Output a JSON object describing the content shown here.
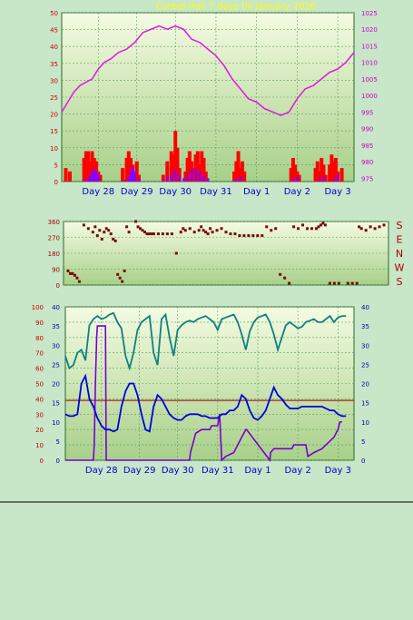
{
  "page": {
    "background": "#c8e6c8",
    "title": "Corbel Hall 7 days till January 2026"
  },
  "colors": {
    "panel_top": "#f4fbe2",
    "panel_bottom": "#a8d08a",
    "grid": "#5aa05a",
    "pressure": "#e020e0",
    "rain_rate": "#ff0000",
    "rain_total": "#8a00ff",
    "wind_dir": "#7a0a0a",
    "humidity": "#108080",
    "temperature": "#0000dd",
    "dewpoint_ref": "#aa2020",
    "solar": "#7a00cc",
    "axis_left": "#cc0000",
    "axis_right": "#cc00cc",
    "axis_left_3": "#cc0000",
    "axis_left_3b": "#0000aa",
    "axis_right_3": "#0000aa",
    "day_label": "#0000cc",
    "title": "#ffff00"
  },
  "chart_data": [
    {
      "type": "line",
      "name": "pressure-rain",
      "x_ticks": [
        "Day 28",
        "Day 29",
        "Day 30",
        "Day 31",
        "Day 1",
        "Day 2",
        "Day 3"
      ],
      "x_range": [
        0,
        7.2
      ],
      "x_tick_positions": [
        0.9,
        1.85,
        2.8,
        3.8,
        4.8,
        5.8,
        6.8
      ],
      "y_left": {
        "ticks": [
          0,
          5,
          10,
          15,
          20,
          25,
          30,
          35,
          40,
          45,
          50
        ],
        "range": [
          0,
          50
        ]
      },
      "y_right": {
        "ticks": [
          975,
          980,
          985,
          990,
          995,
          1000,
          1005,
          1010,
          1015,
          1020,
          1025
        ],
        "range": [
          974,
          1025
        ]
      },
      "series": [
        {
          "key": "pressure",
          "axis": "right",
          "x": [
            0,
            0.15,
            0.3,
            0.45,
            0.6,
            0.75,
            0.9,
            1.05,
            1.2,
            1.4,
            1.6,
            1.8,
            2.0,
            2.2,
            2.4,
            2.6,
            2.8,
            3.0,
            3.2,
            3.4,
            3.6,
            3.8,
            4.0,
            4.2,
            4.4,
            4.6,
            4.8,
            5.0,
            5.2,
            5.4,
            5.6,
            5.8,
            6.0,
            6.2,
            6.4,
            6.6,
            6.8,
            7.0,
            7.2
          ],
          "values": [
            995,
            998,
            1001,
            1003,
            1004,
            1005,
            1008,
            1010,
            1011,
            1013,
            1014,
            1016,
            1019,
            1020,
            1021,
            1020,
            1021,
            1020,
            1017,
            1016,
            1014,
            1012,
            1009,
            1005,
            1002,
            999,
            998,
            996,
            995,
            994,
            995,
            999,
            1002,
            1003,
            1005,
            1007,
            1008,
            1010,
            1013
          ]
        },
        {
          "key": "rain_rate",
          "axis": "left",
          "x": [
            0.1,
            0.2,
            0.55,
            0.6,
            0.65,
            0.7,
            0.75,
            0.8,
            0.85,
            0.9,
            0.95,
            1.5,
            1.6,
            1.65,
            1.7,
            1.75,
            1.8,
            1.85,
            1.9,
            2.5,
            2.6,
            2.7,
            2.75,
            2.8,
            2.85,
            2.9,
            3.05,
            3.1,
            3.15,
            3.2,
            3.25,
            3.3,
            3.35,
            3.4,
            3.45,
            3.5,
            3.55,
            4.25,
            4.3,
            4.35,
            4.4,
            4.45,
            4.5,
            5.65,
            5.7,
            5.75,
            5.8,
            5.85,
            6.25,
            6.3,
            6.35,
            6.4,
            6.45,
            6.5,
            6.6,
            6.65,
            6.7,
            6.75,
            6.8,
            6.9
          ],
          "values": [
            4,
            3,
            7,
            9,
            9,
            6,
            9,
            7,
            6,
            3,
            2,
            4,
            7,
            9,
            7,
            5,
            3,
            6,
            2,
            2,
            6,
            9,
            8,
            15,
            10,
            4,
            3,
            7,
            9,
            6,
            4,
            8,
            9,
            5,
            9,
            7,
            3,
            3,
            6,
            9,
            4,
            6,
            3,
            4,
            7,
            5,
            3,
            2,
            4,
            6,
            3,
            7,
            5,
            2,
            5,
            8,
            6,
            7,
            3,
            4
          ]
        },
        {
          "key": "rain_total",
          "axis": "left",
          "x": [
            0.55,
            0.65,
            0.7,
            0.75,
            0.8,
            0.85,
            0.9,
            1.55,
            1.65,
            1.7,
            1.75,
            1.8,
            1.9,
            2.5,
            2.6,
            2.7,
            2.8,
            2.9,
            3.0,
            3.1,
            3.2,
            3.3,
            3.4,
            3.5,
            3.6,
            4.3,
            4.4,
            5.7,
            5.8,
            6.35,
            6.45,
            6.7,
            6.8
          ],
          "values": [
            0.5,
            1,
            2,
            3,
            4,
            3,
            2,
            0.5,
            1.5,
            3.5,
            4.5,
            3,
            1,
            0.5,
            1.5,
            2.5,
            3.5,
            2,
            1,
            2,
            3.5,
            4,
            3,
            2,
            1,
            1,
            1.5,
            1,
            1.5,
            1,
            1.5,
            1,
            2
          ]
        }
      ]
    },
    {
      "type": "scatter",
      "name": "wind-direction",
      "x_ticks": [],
      "x_range": [
        0,
        7.2
      ],
      "y_left": {
        "ticks": [
          0,
          90,
          180,
          270,
          360
        ],
        "range": [
          0,
          360
        ]
      },
      "y_right_labels": [
        "S",
        "E",
        "N",
        "W",
        "S"
      ],
      "series": [
        {
          "key": "wind_dir",
          "x": [
            0.1,
            0.15,
            0.2,
            0.25,
            0.3,
            0.35,
            0.45,
            0.55,
            0.65,
            0.7,
            0.75,
            0.8,
            0.85,
            0.9,
            0.95,
            1.0,
            1.05,
            1.1,
            1.15,
            1.2,
            1.25,
            1.3,
            1.35,
            1.4,
            1.45,
            1.6,
            1.65,
            1.7,
            1.75,
            1.8,
            1.85,
            1.9,
            1.95,
            2.0,
            2.1,
            2.2,
            2.3,
            2.4,
            2.5,
            2.6,
            2.65,
            2.7,
            2.8,
            2.9,
            3.0,
            3.05,
            3.1,
            3.15,
            3.2,
            3.25,
            3.3,
            3.4,
            3.5,
            3.6,
            3.7,
            3.8,
            3.9,
            4.0,
            4.1,
            4.2,
            4.3,
            4.4,
            4.5,
            4.6,
            4.7,
            4.8,
            4.9,
            5.0,
            5.1,
            5.2,
            5.3,
            5.4,
            5.5,
            5.6,
            5.65,
            5.7,
            5.75,
            5.8,
            5.9,
            6.0,
            6.1,
            6.3,
            6.4,
            6.5,
            6.55,
            6.6,
            6.7,
            6.8,
            6.9,
            7.0,
            7.1
          ],
          "values": [
            80,
            65,
            65,
            55,
            40,
            20,
            340,
            320,
            300,
            330,
            280,
            310,
            260,
            300,
            320,
            310,
            290,
            260,
            250,
            60,
            40,
            20,
            80,
            330,
            300,
            360,
            330,
            320,
            310,
            300,
            290,
            290,
            290,
            290,
            290,
            290,
            290,
            290,
            180,
            300,
            320,
            310,
            320,
            300,
            310,
            330,
            310,
            300,
            290,
            320,
            300,
            310,
            320,
            300,
            290,
            290,
            280,
            280,
            280,
            280,
            280,
            280,
            330,
            310,
            320,
            60,
            40,
            10,
            330,
            320,
            340,
            320,
            320,
            320,
            330,
            340,
            350,
            340,
            10,
            10,
            10,
            10,
            10,
            10,
            330,
            320,
            310,
            330,
            320,
            330,
            340
          ]
        }
      ]
    },
    {
      "type": "line",
      "name": "temperature-humidity-solar",
      "x_ticks": [
        "Day 28",
        "Day 29",
        "Day 30",
        "Day 31",
        "Day 1",
        "Day 2",
        "Day 3"
      ],
      "x_range": [
        0,
        7.2
      ],
      "x_tick_positions": [
        0.9,
        1.85,
        2.8,
        3.8,
        4.8,
        5.8,
        6.8
      ],
      "y_left_outer": {
        "ticks": [
          0,
          10,
          20,
          30,
          40,
          50,
          60,
          70,
          80,
          90,
          100
        ],
        "range": [
          0,
          100
        ]
      },
      "y_left_inner": {
        "ticks": [
          0,
          5,
          10,
          15,
          20,
          25,
          30,
          35,
          40
        ],
        "range": [
          0,
          40
        ]
      },
      "y_right": {
        "ticks": [
          0,
          5,
          10,
          15,
          20,
          25,
          30,
          35,
          40
        ],
        "range": [
          0,
          40
        ]
      },
      "series": [
        {
          "key": "humidity",
          "axis": "outer",
          "x": [
            0,
            0.1,
            0.2,
            0.3,
            0.4,
            0.5,
            0.6,
            0.7,
            0.8,
            0.9,
            1.0,
            1.1,
            1.2,
            1.3,
            1.4,
            1.5,
            1.6,
            1.7,
            1.8,
            1.9,
            2.0,
            2.1,
            2.2,
            2.3,
            2.4,
            2.5,
            2.6,
            2.7,
            2.8,
            2.9,
            3.0,
            3.1,
            3.2,
            3.3,
            3.4,
            3.5,
            3.6,
            3.7,
            3.8,
            3.9,
            4.0,
            4.1,
            4.2,
            4.3,
            4.4,
            4.5,
            4.6,
            4.7,
            4.8,
            4.9,
            5.0,
            5.1,
            5.2,
            5.3,
            5.4,
            5.5,
            5.6,
            5.7,
            5.8,
            5.9,
            6.0,
            6.1,
            6.2,
            6.3,
            6.4,
            6.5,
            6.6,
            6.7,
            6.8,
            6.9,
            7.0
          ],
          "values": [
            68,
            60,
            62,
            70,
            72,
            65,
            88,
            92,
            94,
            92,
            93,
            95,
            96,
            90,
            86,
            68,
            60,
            70,
            85,
            90,
            92,
            94,
            70,
            62,
            92,
            95,
            80,
            68,
            85,
            88,
            90,
            91,
            90,
            92,
            93,
            94,
            92,
            90,
            85,
            92,
            93,
            94,
            95,
            90,
            82,
            72,
            84,
            90,
            93,
            94,
            95,
            90,
            82,
            72,
            80,
            88,
            90,
            88,
            86,
            87,
            90,
            91,
            92,
            90,
            90,
            92,
            94,
            90,
            93,
            94,
            94
          ]
        },
        {
          "key": "temperature",
          "axis": "inner",
          "x": [
            0,
            0.1,
            0.2,
            0.3,
            0.4,
            0.5,
            0.6,
            0.7,
            0.8,
            0.9,
            1.0,
            1.1,
            1.2,
            1.3,
            1.4,
            1.5,
            1.6,
            1.7,
            1.8,
            1.9,
            2.0,
            2.1,
            2.2,
            2.3,
            2.4,
            2.5,
            2.6,
            2.7,
            2.8,
            2.9,
            3.0,
            3.1,
            3.2,
            3.3,
            3.4,
            3.5,
            3.6,
            3.7,
            3.8,
            3.9,
            4.0,
            4.1,
            4.2,
            4.3,
            4.4,
            4.5,
            4.6,
            4.7,
            4.8,
            4.9,
            5.0,
            5.1,
            5.2,
            5.3,
            5.4,
            5.5,
            5.6,
            5.7,
            5.8,
            5.9,
            6.0,
            6.1,
            6.2,
            6.3,
            6.4,
            6.5,
            6.6,
            6.7,
            6.8,
            6.9,
            7.0
          ],
          "values": [
            12,
            11.5,
            11.5,
            12,
            20,
            22,
            16,
            14,
            11,
            9,
            8,
            8,
            7.5,
            8,
            14,
            18,
            20,
            20,
            17,
            12,
            8,
            7.5,
            14,
            17,
            16,
            14,
            12,
            11,
            10.5,
            10.5,
            11.5,
            12,
            12,
            12,
            11.5,
            11.5,
            11,
            11,
            11,
            12,
            12,
            13,
            13,
            14,
            17,
            16,
            13,
            11,
            10.5,
            11.5,
            13,
            16,
            19,
            17,
            16,
            14.5,
            13.5,
            13.5,
            13.5,
            14,
            14,
            14,
            14,
            14,
            14,
            13.5,
            13,
            13,
            12,
            11.5,
            11.5
          ]
        },
        {
          "key": "dewpoint_ref",
          "axis": "outer",
          "x": [
            0,
            7.2
          ],
          "values": [
            39,
            39
          ]
        },
        {
          "key": "solar",
          "axis": "right",
          "x": [
            0,
            0.5,
            0.55,
            0.7,
            0.72,
            0.75,
            0.78,
            0.8,
            0.85,
            0.9,
            0.95,
            1.0,
            1.02,
            3.1,
            3.12,
            3.2,
            3.25,
            3.4,
            3.6,
            3.65,
            3.8,
            3.85,
            3.9,
            4.0,
            4.2,
            4.3,
            4.4,
            4.5,
            4.52,
            5.1,
            5.12,
            5.2,
            5.3,
            5.4,
            5.5,
            5.6,
            5.65,
            5.7,
            6.0,
            6.05,
            6.2,
            6.4,
            6.5,
            6.6,
            6.7,
            6.8,
            6.85,
            6.9
          ],
          "values": [
            0,
            0,
            0,
            0,
            4,
            20,
            32,
            35,
            35,
            35,
            35,
            35,
            0,
            0,
            2,
            5,
            7,
            8,
            8,
            9,
            9,
            12,
            0,
            1,
            2,
            4,
            6,
            8,
            8,
            0,
            2,
            3,
            3,
            3,
            3,
            3,
            3,
            4,
            4,
            1,
            2,
            3,
            4,
            5,
            6,
            8,
            10,
            10
          ]
        }
      ]
    }
  ]
}
